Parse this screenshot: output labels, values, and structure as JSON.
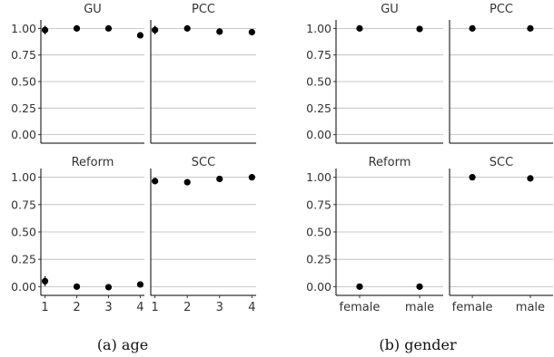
{
  "chart_data": [
    {
      "type": "scatter",
      "subfigure": "a",
      "caption": "(a) age",
      "x": [
        "1",
        "2",
        "3",
        "4"
      ],
      "y_ticks": [
        "0.00",
        "0.25",
        "0.50",
        "0.75",
        "1.00"
      ],
      "ylim": [
        -0.08,
        1.08
      ],
      "grid": "horizontal",
      "error_bars": true,
      "panels": [
        {
          "title": "GU",
          "points": [
            {
              "x": "1",
              "y": 0.985,
              "err": 0.04
            },
            {
              "x": "2",
              "y": 1.0,
              "err": 0
            },
            {
              "x": "3",
              "y": 1.0,
              "err": 0
            },
            {
              "x": "4",
              "y": 0.935,
              "err": 0
            }
          ]
        },
        {
          "title": "PCC",
          "points": [
            {
              "x": "1",
              "y": 0.985,
              "err": 0.04
            },
            {
              "x": "2",
              "y": 1.0,
              "err": 0
            },
            {
              "x": "3",
              "y": 0.97,
              "err": 0
            },
            {
              "x": "4",
              "y": 0.965,
              "err": 0
            }
          ]
        },
        {
          "title": "Reform",
          "points": [
            {
              "x": "1",
              "y": 0.05,
              "err": 0.045
            },
            {
              "x": "2",
              "y": 0.0,
              "err": 0
            },
            {
              "x": "3",
              "y": -0.005,
              "err": 0
            },
            {
              "x": "4",
              "y": 0.02,
              "err": 0
            }
          ]
        },
        {
          "title": "SCC",
          "points": [
            {
              "x": "1",
              "y": 0.965,
              "err": 0.03
            },
            {
              "x": "2",
              "y": 0.955,
              "err": 0
            },
            {
              "x": "3",
              "y": 0.985,
              "err": 0
            },
            {
              "x": "4",
              "y": 1.0,
              "err": 0
            }
          ]
        }
      ]
    },
    {
      "type": "scatter",
      "subfigure": "b",
      "caption": "(b) gender",
      "x": [
        "female",
        "male"
      ],
      "y_ticks": [
        "0.00",
        "0.25",
        "0.50",
        "0.75",
        "1.00"
      ],
      "ylim": [
        -0.08,
        1.08
      ],
      "grid": "horizontal",
      "error_bars": false,
      "panels": [
        {
          "title": "GU",
          "points": [
            {
              "x": "female",
              "y": 1.0,
              "err": 0
            },
            {
              "x": "male",
              "y": 0.995,
              "err": 0
            }
          ]
        },
        {
          "title": "PCC",
          "points": [
            {
              "x": "female",
              "y": 1.0,
              "err": 0
            },
            {
              "x": "male",
              "y": 1.0,
              "err": 0
            }
          ]
        },
        {
          "title": "Reform",
          "points": [
            {
              "x": "female",
              "y": 0.0,
              "err": 0
            },
            {
              "x": "male",
              "y": 0.0,
              "err": 0
            }
          ]
        },
        {
          "title": "SCC",
          "points": [
            {
              "x": "female",
              "y": 1.0,
              "err": 0
            },
            {
              "x": "male",
              "y": 0.99,
              "err": 0
            }
          ]
        }
      ]
    }
  ]
}
